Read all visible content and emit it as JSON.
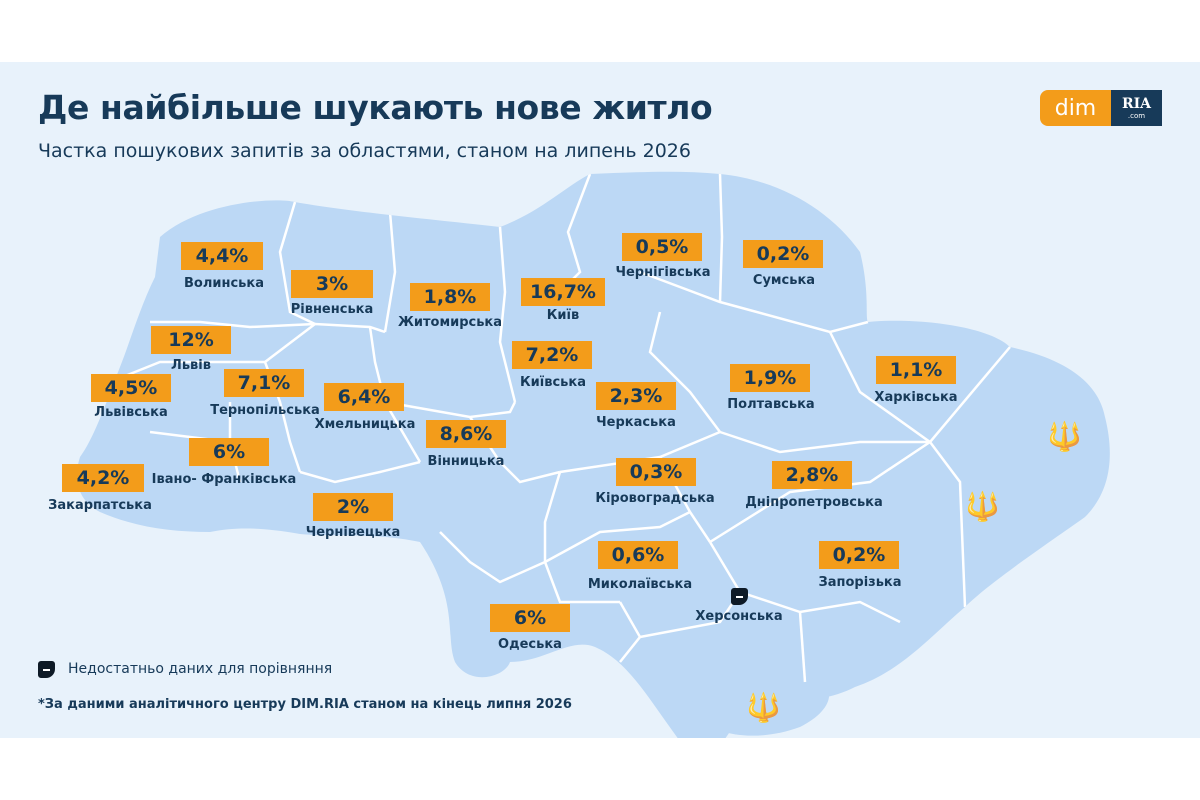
{
  "header": {
    "title": "Де найбільше шукають нове житло",
    "subtitle": "Частка пошукових запитів за областями, станом на липень 2026"
  },
  "logo": {
    "dim": "dim",
    "ria": "RIA",
    "com": ".com"
  },
  "colors": {
    "accent": "#f39c1a",
    "text": "#173a59",
    "region_fill": "#bcd8f5",
    "region_border": "#ffffff",
    "background": "#e8f2fb"
  },
  "regions": [
    {
      "name": "Волинська",
      "value": "4,4%"
    },
    {
      "name": "Рівненська",
      "value": "3%"
    },
    {
      "name": "Житомирська",
      "value": "1,8%"
    },
    {
      "name": "Київ",
      "value": "16,7%"
    },
    {
      "name": "Чернігівська",
      "value": "0,5%"
    },
    {
      "name": "Сумська",
      "value": "0,2%"
    },
    {
      "name": "Львів",
      "value": "12%"
    },
    {
      "name": "Львівська",
      "value": "4,5%"
    },
    {
      "name": "Тернопільська",
      "value": "7,1%"
    },
    {
      "name": "Хмельницька",
      "value": "6,4%"
    },
    {
      "name": "Київська",
      "value": "7,2%"
    },
    {
      "name": "Полтавська",
      "value": "1,9%"
    },
    {
      "name": "Харківська",
      "value": "1,1%"
    },
    {
      "name": "Черкаська",
      "value": "2,3%"
    },
    {
      "name": "Закарпатська",
      "value": "4,2%"
    },
    {
      "name": "Івано- Франківська",
      "value": "6%"
    },
    {
      "name": "Вінницька",
      "value": "8,6%"
    },
    {
      "name": "Кіровоградська",
      "value": "0,3%"
    },
    {
      "name": "Дніпропетровська",
      "value": "2,8%"
    },
    {
      "name": "Чернівецька",
      "value": "2%"
    },
    {
      "name": "Миколаївська",
      "value": "0,6%"
    },
    {
      "name": "Запорізька",
      "value": "0,2%"
    },
    {
      "name": "Херсонська",
      "value": null,
      "no_data": true
    },
    {
      "name": "Одеська",
      "value": "6%"
    }
  ],
  "occupied_marker_icon": "tryzub-icon",
  "legend": {
    "icon": "no-data-icon",
    "label": "Недостатньо даних для порівняння"
  },
  "footnote": "*За даними аналітичного центру DIM.RIA станом на кінець липня 2026"
}
